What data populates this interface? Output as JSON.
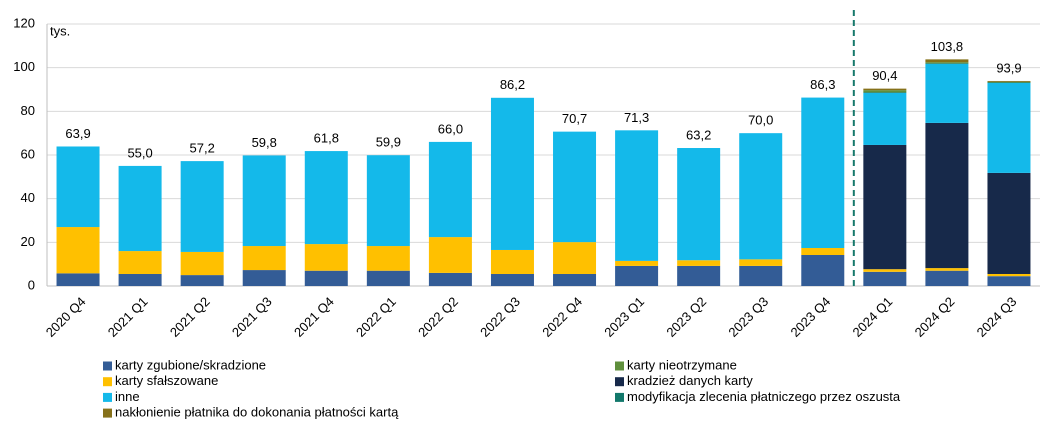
{
  "chart_data": {
    "type": "stacked_bar",
    "annotation": "tys.",
    "categories": [
      "2020 Q4",
      "2021 Q1",
      "2021 Q2",
      "2021 Q3",
      "2021 Q4",
      "2022 Q1",
      "2022 Q2",
      "2022 Q3",
      "2022 Q4",
      "2023 Q1",
      "2023 Q2",
      "2023 Q3",
      "2023 Q4",
      "2024 Q1",
      "2024 Q2",
      "2024 Q3"
    ],
    "ylim": [
      0,
      120
    ],
    "yticks": [
      0,
      20,
      40,
      60,
      80,
      100,
      120
    ],
    "grid": true,
    "series": [
      {
        "name": "karty zgubione/skradzione",
        "color": "#335c96",
        "values": [
          5.8,
          5.5,
          5.0,
          7.3,
          7.0,
          7.0,
          6.0,
          5.5,
          5.5,
          9.2,
          9.2,
          9.2,
          14.2,
          6.5,
          7.0,
          4.5
        ]
      },
      {
        "name": "karty nieotrzymane",
        "color": "#5f8f3c",
        "values": [
          null,
          null,
          null,
          null,
          null,
          null,
          null,
          null,
          null,
          null,
          null,
          null,
          null,
          1.0,
          0.5,
          0.3
        ]
      },
      {
        "name": "karty sfałszowane",
        "color": "#ffc000",
        "values": [
          21.2,
          10.5,
          10.6,
          11.0,
          12.2,
          11.3,
          16.4,
          11.0,
          14.6,
          2.3,
          2.6,
          3.0,
          3.2,
          1.2,
          1.2,
          1.0
        ]
      },
      {
        "name": "kradzież danych karty",
        "color": "#17294a",
        "values": [
          null,
          null,
          null,
          null,
          null,
          null,
          null,
          null,
          null,
          null,
          null,
          null,
          null,
          56.9,
          66.5,
          46.3
        ]
      },
      {
        "name": "inne",
        "color": "#14b9ea",
        "values": [
          36.9,
          39.0,
          41.6,
          41.5,
          42.6,
          41.6,
          43.6,
          69.7,
          50.6,
          59.8,
          51.4,
          57.8,
          68.9,
          23.8,
          27.0,
          41.2
        ]
      },
      {
        "name": "modyfikacja zlecenia płatniczego przez oszusta",
        "color": "#12786b",
        "values": [
          null,
          null,
          null,
          null,
          null,
          null,
          null,
          null,
          null,
          null,
          null,
          null,
          null,
          0.3,
          0.3,
          0.2
        ]
      },
      {
        "name": "nakłonienie płatnika do dokonania płatności kartą",
        "color": "#86711a",
        "values": [
          null,
          null,
          null,
          null,
          null,
          null,
          null,
          null,
          null,
          null,
          null,
          null,
          null,
          0.7,
          1.3,
          0.4
        ]
      }
    ],
    "totals": [
      63.9,
      55.0,
      57.2,
      59.8,
      61.8,
      59.9,
      66.0,
      86.2,
      70.7,
      71.3,
      63.2,
      70.0,
      86.3,
      90.4,
      103.8,
      93.9
    ],
    "total_labels": [
      "63,9",
      "55,0",
      "57,2",
      "59,8",
      "61,8",
      "59,9",
      "66,0",
      "86,2",
      "70,7",
      "71,3",
      "63,2",
      "70,0",
      "86,3",
      "90,4",
      "103,8",
      "93,9"
    ]
  }
}
